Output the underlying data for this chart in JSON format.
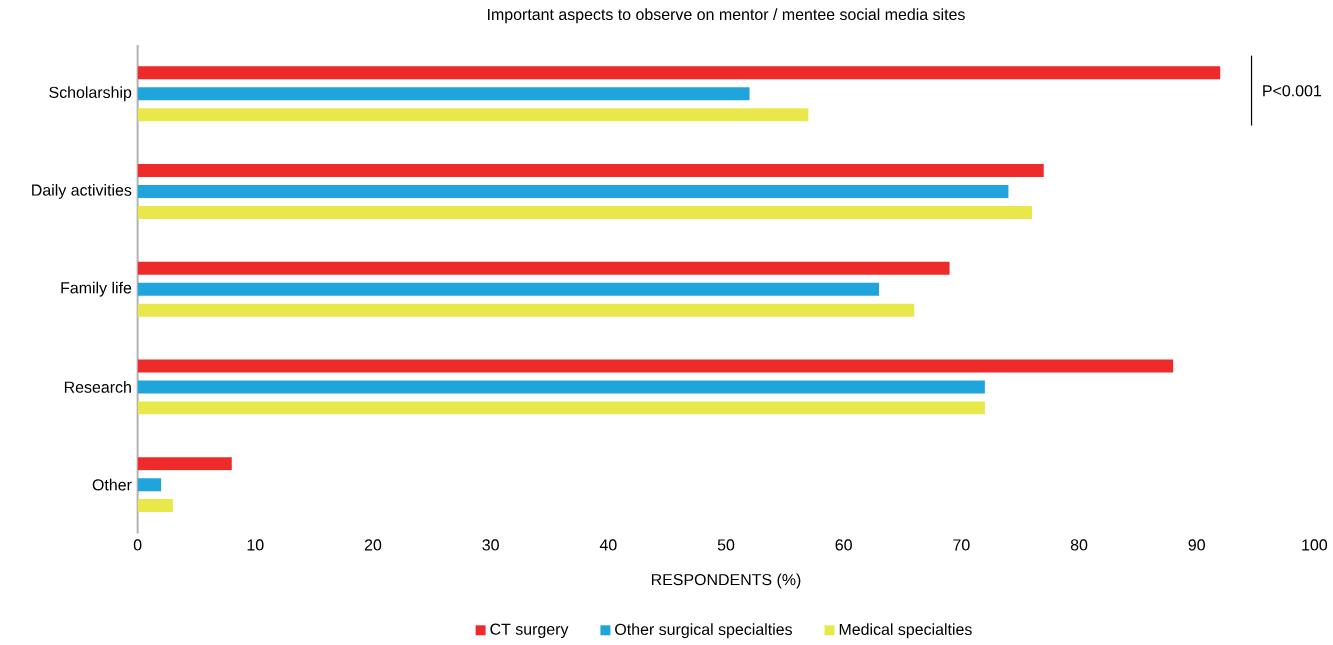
{
  "chart_data": {
    "type": "bar",
    "orientation": "horizontal",
    "title": "Important aspects to observe on mentor / mentee social media sites",
    "xlabel": "RESPONDENTS (%)",
    "categories": [
      "Scholarship",
      "Daily activities",
      "Family life",
      "Research",
      "Other"
    ],
    "series": [
      {
        "name": "CT surgery",
        "color": "#ee2a2b",
        "values": [
          92,
          77,
          69,
          88,
          8
        ]
      },
      {
        "name": "Other surgical specialties",
        "color": "#1fa5dc",
        "values": [
          52,
          74,
          63,
          72,
          2
        ]
      },
      {
        "name": "Medical specialties",
        "color": "#e9e84a",
        "values": [
          57,
          76,
          66,
          72,
          3
        ]
      }
    ],
    "xlim": [
      0,
      100
    ],
    "xticks": [
      0,
      10,
      20,
      30,
      40,
      50,
      60,
      70,
      80,
      90,
      100
    ],
    "legend": "bottom",
    "annotations": [
      "P<0.001"
    ]
  }
}
